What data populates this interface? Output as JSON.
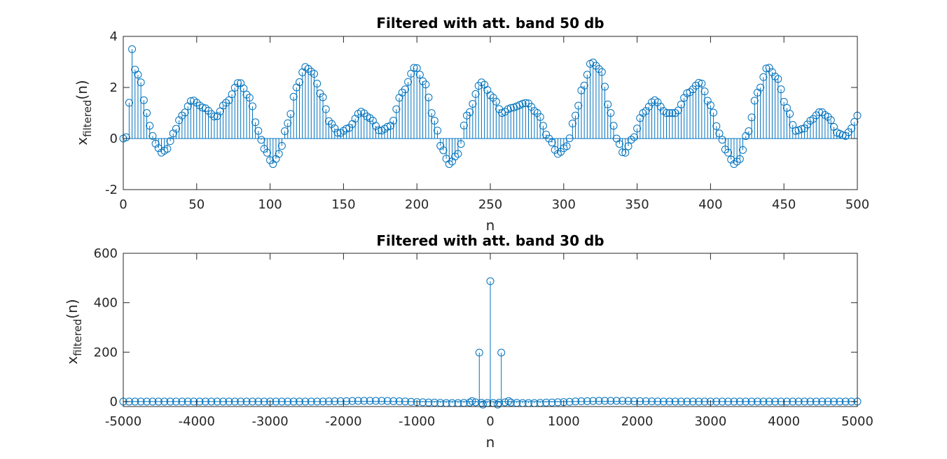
{
  "chart_data": [
    {
      "type": "stem",
      "title": "Filtered with att. band 50 db",
      "xlabel": "n",
      "ylabel": {
        "base": "x",
        "subscript": "filtered",
        "suffix": "(n)"
      },
      "xlim": [
        0,
        500
      ],
      "ylim": [
        -2,
        4
      ],
      "xticks": [
        0,
        50,
        100,
        150,
        200,
        250,
        300,
        350,
        400,
        450,
        500
      ],
      "yticks": [
        -2,
        0,
        2,
        4
      ],
      "xtick_labels": [
        "0",
        "50",
        "100",
        "150",
        "200",
        "250",
        "300",
        "350",
        "400",
        "450",
        "500"
      ],
      "ytick_labels": [
        "-2",
        "0",
        "2",
        "4"
      ],
      "color": "#0072BD",
      "n_step": 2,
      "keypoints": [
        [
          0,
          0
        ],
        [
          2,
          0.05
        ],
        [
          4,
          1.4
        ],
        [
          5,
          2.6
        ],
        [
          6,
          3.5
        ],
        [
          7,
          3.5
        ],
        [
          8,
          2.7
        ],
        [
          10,
          2.5
        ],
        [
          12,
          2.2
        ],
        [
          14,
          1.5
        ],
        [
          16,
          1.0
        ],
        [
          18,
          0.5
        ],
        [
          20,
          0.1
        ],
        [
          22,
          -0.2
        ],
        [
          26,
          -0.55
        ],
        [
          30,
          -0.4
        ],
        [
          34,
          0.2
        ],
        [
          40,
          0.9
        ],
        [
          47,
          1.5
        ],
        [
          55,
          1.2
        ],
        [
          63,
          0.85
        ],
        [
          70,
          1.4
        ],
        [
          79,
          2.2
        ],
        [
          86,
          1.6
        ],
        [
          92,
          0.3
        ],
        [
          96,
          -0.4
        ],
        [
          102,
          -1.0
        ],
        [
          106,
          -0.6
        ],
        [
          112,
          0.6
        ],
        [
          118,
          2.0
        ],
        [
          124,
          2.8
        ],
        [
          129,
          2.6
        ],
        [
          135,
          1.7
        ],
        [
          141,
          0.6
        ],
        [
          147,
          0.2
        ],
        [
          153,
          0.4
        ],
        [
          162,
          1.05
        ],
        [
          168,
          0.8
        ],
        [
          175,
          0.3
        ],
        [
          182,
          0.5
        ],
        [
          190,
          1.8
        ],
        [
          199,
          2.8
        ],
        [
          205,
          2.2
        ],
        [
          212,
          0.7
        ],
        [
          217,
          -0.4
        ],
        [
          222,
          -1.0
        ],
        [
          228,
          -0.6
        ],
        [
          234,
          0.9
        ],
        [
          244,
          2.2
        ],
        [
          252,
          1.6
        ],
        [
          258,
          1.0
        ],
        [
          264,
          1.2
        ],
        [
          275,
          1.4
        ],
        [
          282,
          1.0
        ],
        [
          290,
          0.0
        ],
        [
          296,
          -0.6
        ],
        [
          302,
          -0.3
        ],
        [
          308,
          0.9
        ],
        [
          313,
          2.0
        ],
        [
          319,
          3.0
        ],
        [
          325,
          2.7
        ],
        [
          332,
          1.0
        ],
        [
          336,
          0.0
        ],
        [
          341,
          -0.6
        ],
        [
          347,
          0.0
        ],
        [
          354,
          1.0
        ],
        [
          362,
          1.5
        ],
        [
          370,
          1.0
        ],
        [
          376,
          1.0
        ],
        [
          385,
          1.8
        ],
        [
          393,
          2.2
        ],
        [
          400,
          1.3
        ],
        [
          406,
          0.2
        ],
        [
          411,
          -0.5
        ],
        [
          416,
          -1.0
        ],
        [
          420,
          -0.8
        ],
        [
          425,
          0.2
        ],
        [
          432,
          1.8
        ],
        [
          439,
          2.8
        ],
        [
          445,
          2.4
        ],
        [
          452,
          1.2
        ],
        [
          458,
          0.3
        ],
        [
          464,
          0.4
        ],
        [
          468,
          0.7
        ],
        [
          475,
          1.05
        ],
        [
          480,
          0.85
        ],
        [
          487,
          0.2
        ],
        [
          492,
          0.1
        ],
        [
          496,
          0.4
        ],
        [
          500,
          0.9
        ]
      ]
    },
    {
      "type": "stem",
      "title": "Filtered with att. band 30 db",
      "xlabel": "n",
      "ylabel": {
        "base": "x",
        "subscript": "filtered",
        "suffix": "(n)"
      },
      "xlim": [
        -5000,
        5000
      ],
      "ylim": [
        -20,
        600
      ],
      "xticks": [
        -5000,
        -4000,
        -3000,
        -2000,
        -1000,
        0,
        1000,
        2000,
        3000,
        4000,
        5000
      ],
      "yticks": [
        0,
        200,
        400,
        600
      ],
      "xtick_labels": [
        "-5000",
        "-4000",
        "-3000",
        "-2000",
        "-1000",
        "0",
        "1000",
        "2000",
        "3000",
        "4000",
        "5000"
      ],
      "ytick_labels": [
        "0",
        "200",
        "400",
        "600"
      ],
      "color": "#0072BD",
      "n_step": 80,
      "keypoints": [
        [
          -5000,
          0
        ],
        [
          -4000,
          0
        ],
        [
          -3000,
          0
        ],
        [
          -2500,
          0
        ],
        [
          -2000,
          1.5
        ],
        [
          -1800,
          3
        ],
        [
          -1500,
          3
        ],
        [
          -1200,
          1
        ],
        [
          -1000,
          -2
        ],
        [
          -800,
          -4
        ],
        [
          -600,
          -6
        ],
        [
          -400,
          -6
        ],
        [
          -300,
          -4
        ],
        [
          -200,
          -3
        ],
        [
          -100,
          -5
        ],
        [
          0,
          -6
        ],
        [
          100,
          -5
        ],
        [
          200,
          -3
        ],
        [
          300,
          -4
        ],
        [
          400,
          -6
        ],
        [
          600,
          -6
        ],
        [
          800,
          -4
        ],
        [
          1000,
          -2
        ],
        [
          1200,
          1
        ],
        [
          1500,
          3
        ],
        [
          1800,
          3
        ],
        [
          2000,
          1.5
        ],
        [
          2500,
          0
        ],
        [
          3000,
          0
        ],
        [
          4000,
          0
        ],
        [
          5000,
          0
        ]
      ],
      "spikes": [
        [
          -150,
          198
        ],
        [
          0,
          487
        ],
        [
          150,
          198
        ],
        [
          -250,
          2
        ],
        [
          -100,
          -12
        ],
        [
          100,
          -12
        ],
        [
          250,
          2
        ]
      ]
    }
  ]
}
